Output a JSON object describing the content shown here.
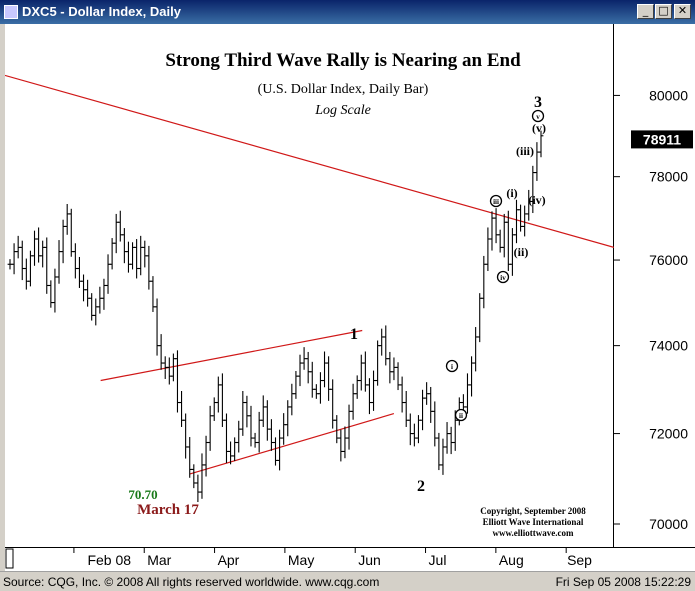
{
  "window": {
    "title": "DXC5 - Dollar Index, Daily",
    "controls": {
      "minimize": "_",
      "maximize": "□",
      "close": "✕"
    }
  },
  "status_bar": {
    "source": "Source: CQG, Inc. © 2008 All rights reserved worldwide.  www.cqg.com",
    "timestamp": "Fri Sep 05 2008  15:22:29"
  },
  "chart_data": {
    "type": "ohlc",
    "title": "Strong Third Wave Rally is Nearing an End",
    "subtitle": "(U.S. Dollar Index, Daily Bar)",
    "scale_note": "Log Scale",
    "y_scale": "log",
    "ylim": [
      69500,
      81800
    ],
    "y_ticks": [
      70000,
      72000,
      74000,
      76000,
      78000,
      80000
    ],
    "y_tick_labels": [
      "70000",
      "72000",
      "74000",
      "76000",
      "78000",
      "80000"
    ],
    "last_price": 78911,
    "last_price_label": "78911",
    "x_labels": [
      "Feb 08",
      "Mar",
      "Apr",
      "May",
      "Jun",
      "Jul",
      "Aug",
      "Sep"
    ],
    "x_label_positions": [
      0.15,
      1.0,
      2.0,
      3.0,
      4.0,
      5.0,
      6.0,
      6.97
    ],
    "xlim": [
      -0.98,
      7.68
    ],
    "series": [
      {
        "values": [
          75900,
          76200,
          76300,
          75800,
          75500,
          76100,
          76500,
          76100,
          76300,
          75400,
          75000,
          75600,
          76200,
          76800,
          77100,
          76200,
          75800,
          75500,
          75300,
          75100,
          74700,
          74900,
          75100,
          75400,
          75900,
          76400,
          76900,
          76600,
          76200,
          75900,
          76300,
          75800,
          76300,
          76100,
          75500,
          74900,
          74000,
          73600,
          73500,
          73300,
          73700,
          72700,
          72300,
          71700,
          71200,
          70900,
          70700,
          71300,
          71800,
          72400,
          72700,
          73100,
          72300,
          71600,
          71500,
          71800,
          72100,
          72700,
          72400,
          71900,
          71800,
          72300,
          72600,
          72100,
          71800,
          71400,
          71900,
          72200,
          72600,
          72900,
          73300,
          73600,
          73700,
          73400,
          73000,
          72900,
          73200,
          73600,
          73000,
          72300,
          71900,
          71600,
          71900,
          72500,
          72900,
          73200,
          73600,
          73100,
          72700,
          73200,
          74000,
          74200,
          73700,
          73400,
          73500,
          73100,
          72700,
          72300,
          72000,
          71900,
          72300,
          72800,
          72900,
          72500,
          71900,
          71300,
          71700,
          72000,
          71800,
          72300,
          72700,
          72600,
          73100,
          73600,
          74200,
          75100,
          75900,
          76500,
          77000,
          76600,
          76300,
          76900,
          75900,
          76600,
          77200,
          76800,
          77100,
          77400,
          78100,
          78600,
          79000
        ]
      }
    ],
    "annotations": {
      "wave_1": "1",
      "wave_2": "2",
      "wave_3": "3",
      "wave_i": "(i)",
      "wave_ii": "(ii)",
      "wave_iii": "(iii)",
      "wave_iv": "(iv)",
      "wave_v": "(v)",
      "circled_i": "i",
      "circled_ii": "ii",
      "circled_iii": "iii",
      "circled_iv": "iv",
      "circled_v": "v",
      "low_value": "70.70",
      "low_date": "March 17"
    },
    "copyright": [
      "Copyright, September 2008",
      "Elliott Wave International",
      "www.elliottwave.com"
    ],
    "trendline": {
      "start": [
        -0.98,
        80500
      ],
      "end": [
        7.68,
        76300
      ]
    },
    "channel": {
      "upper": {
        "start": [
          0.38,
          73200
        ],
        "end": [
          4.1,
          74350
        ]
      },
      "lower": {
        "start": [
          1.65,
          71100
        ],
        "end": [
          4.55,
          72450
        ]
      }
    },
    "grid": false,
    "colors": {
      "bars": "#000000",
      "lines": "#d01818",
      "low_value": "#1a7a1a",
      "low_date": "#8b1a1a"
    }
  }
}
